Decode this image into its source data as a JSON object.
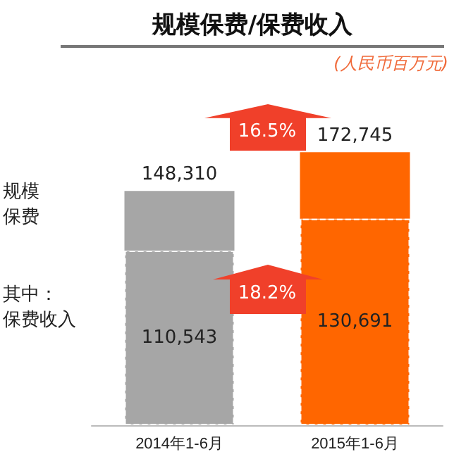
{
  "chart_data": {
    "type": "bar",
    "title": "规模保费/保费收入",
    "subtitle": "(人民币百万元)",
    "categories": [
      "2014年1-6月",
      "2015年1-6月"
    ],
    "stacked": true,
    "tick_labels": "x",
    "series": [
      {
        "colors": [
          "#a6a6a6",
          "#ff6600"
        ],
        "values": [
          110543,
          130691
        ],
        "value_labels": [
          "110,543",
          "130,691"
        ],
        "line_style": "dashed"
      },
      {
        "colors": [
          "#a6a6a6",
          "#ff6600"
        ],
        "values": [
          37767,
          42054
        ]
      }
    ],
    "totals": [
      "148,310",
      "172,745"
    ],
    "annotations": [
      "16.5%",
      "18.2%",
      "规模保费",
      "其中：",
      "保费收入"
    ]
  }
}
